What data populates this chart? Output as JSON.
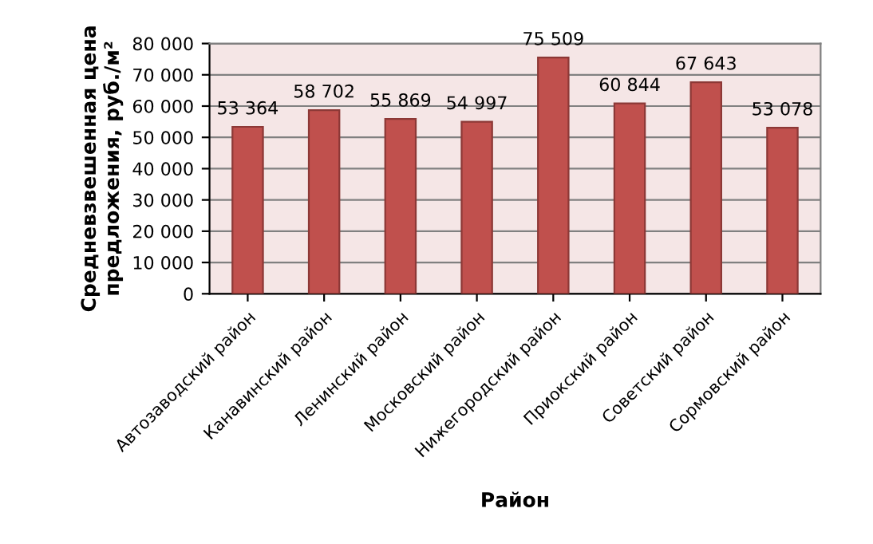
{
  "chart_data": {
    "type": "bar",
    "xlabel": "Район",
    "ylabel": "Средневзвешенная цена предложения, руб./м²",
    "categories": [
      "Автозаводский район",
      "Канавинский район",
      "Ленинский район",
      "Московский район",
      "Нижегородский район",
      "Приокский район",
      "Советский район",
      "Сормовский район"
    ],
    "values": [
      53364,
      58702,
      55869,
      54997,
      75509,
      60844,
      67643,
      53078
    ],
    "value_labels": [
      "53 364",
      "58 702",
      "55 869",
      "54 997",
      "75 509",
      "60 844",
      "67 643",
      "53 078"
    ],
    "color": "#c0504d",
    "ylim": [
      0,
      80000
    ],
    "yticks": [
      {
        "value": 0,
        "label": "0"
      },
      {
        "value": 10000,
        "label": "10 000"
      },
      {
        "value": 20000,
        "label": "20 000"
      },
      {
        "value": 30000,
        "label": "30 000"
      },
      {
        "value": 40000,
        "label": "40 000"
      },
      {
        "value": 50000,
        "label": "50 000"
      },
      {
        "value": 60000,
        "label": "60 000"
      },
      {
        "value": 70000,
        "label": "70 000"
      },
      {
        "value": 80000,
        "label": "80 000"
      }
    ],
    "grid": "y",
    "legend": false
  }
}
